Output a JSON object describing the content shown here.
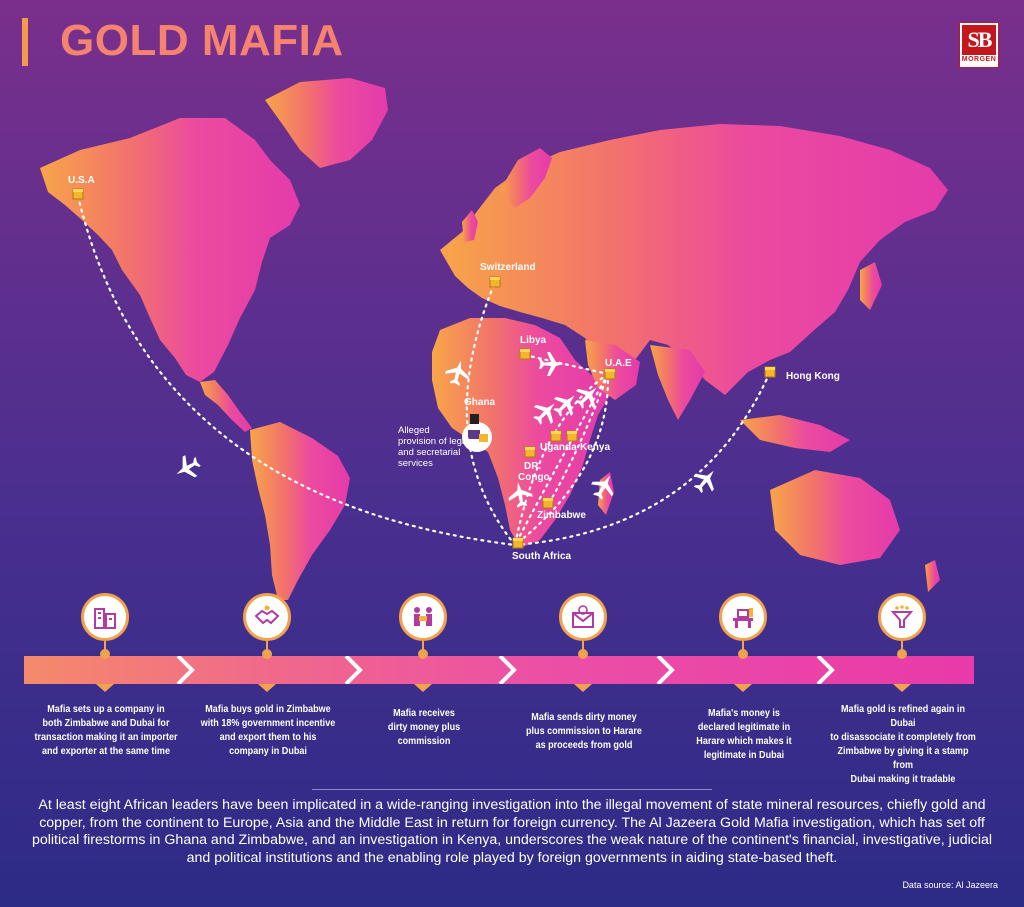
{
  "header": {
    "title": "GOLD MAFIA",
    "logo_mark": "SB",
    "logo_sub": "MORGEN"
  },
  "map": {
    "locations": {
      "usa": "U.S.A",
      "switzerland": "Switzerland",
      "libya": "Libya",
      "uae": "U.A.E",
      "hong_kong": "Hong Kong",
      "ghana": "Ghana",
      "uganda": "Uganda",
      "kenya": "Kenya",
      "dr_congo_1": "DR.",
      "dr_congo_2": "Congo",
      "zimbabwe": "Zimbabwe",
      "south_africa": "South Africa"
    },
    "note_lines": [
      "Alleged",
      "provision of legal",
      "and secretarial",
      "services"
    ]
  },
  "steps": [
    {
      "icon": "office-building-icon",
      "lines": [
        "Mafia sets up a company in",
        "both Zimbabwe and Dubai for",
        "transaction making it an importer",
        "and exporter at the same time"
      ]
    },
    {
      "icon": "handshake-icon",
      "lines": [
        "Mafia buys gold in Zimbabwe",
        "with 18% government incentive",
        "and export them to his",
        "company in Dubai"
      ]
    },
    {
      "icon": "money-exchange-icon",
      "lines": [
        "Mafia receives",
        "dirty money plus",
        "commission"
      ]
    },
    {
      "icon": "envelope-money-icon",
      "lines": [
        "Mafia sends dirty money",
        "plus commission to Harare",
        "as proceeds from gold"
      ]
    },
    {
      "icon": "office-desk-icon",
      "lines": [
        "Mafia's money is",
        "declared legitimate in",
        "Harare which makes it",
        "legitimate in Dubai"
      ]
    },
    {
      "icon": "refining-funnel-icon",
      "lines": [
        "Mafia gold is refined again in Dubai",
        "to disassociate it completely from",
        "Zimbabwe by giving it a stamp from",
        "Dubai making it tradable"
      ]
    }
  ],
  "footer": {
    "body": "At least eight African leaders have been implicated in a wide-ranging investigation into the illegal movement of state mineral resources, chiefly gold and copper, from the continent to Europe, Asia and the Middle East in return for foreign currency. The Al Jazeera Gold Mafia investigation, which has set off political firestorms in Ghana and Zimbabwe, and an investigation in Kenya, underscores the weak nature of the continent's financial, investigative, judicial and political institutions and the enabling role played by foreign governments in aiding state-based theft.",
    "source": "Data source: Al Jazeera"
  },
  "colors": {
    "accent": "#f39a4e",
    "title": "#f4836f",
    "map_start": "#f7a04a",
    "map_end": "#e83aa9",
    "logo_red": "#c4161c"
  }
}
